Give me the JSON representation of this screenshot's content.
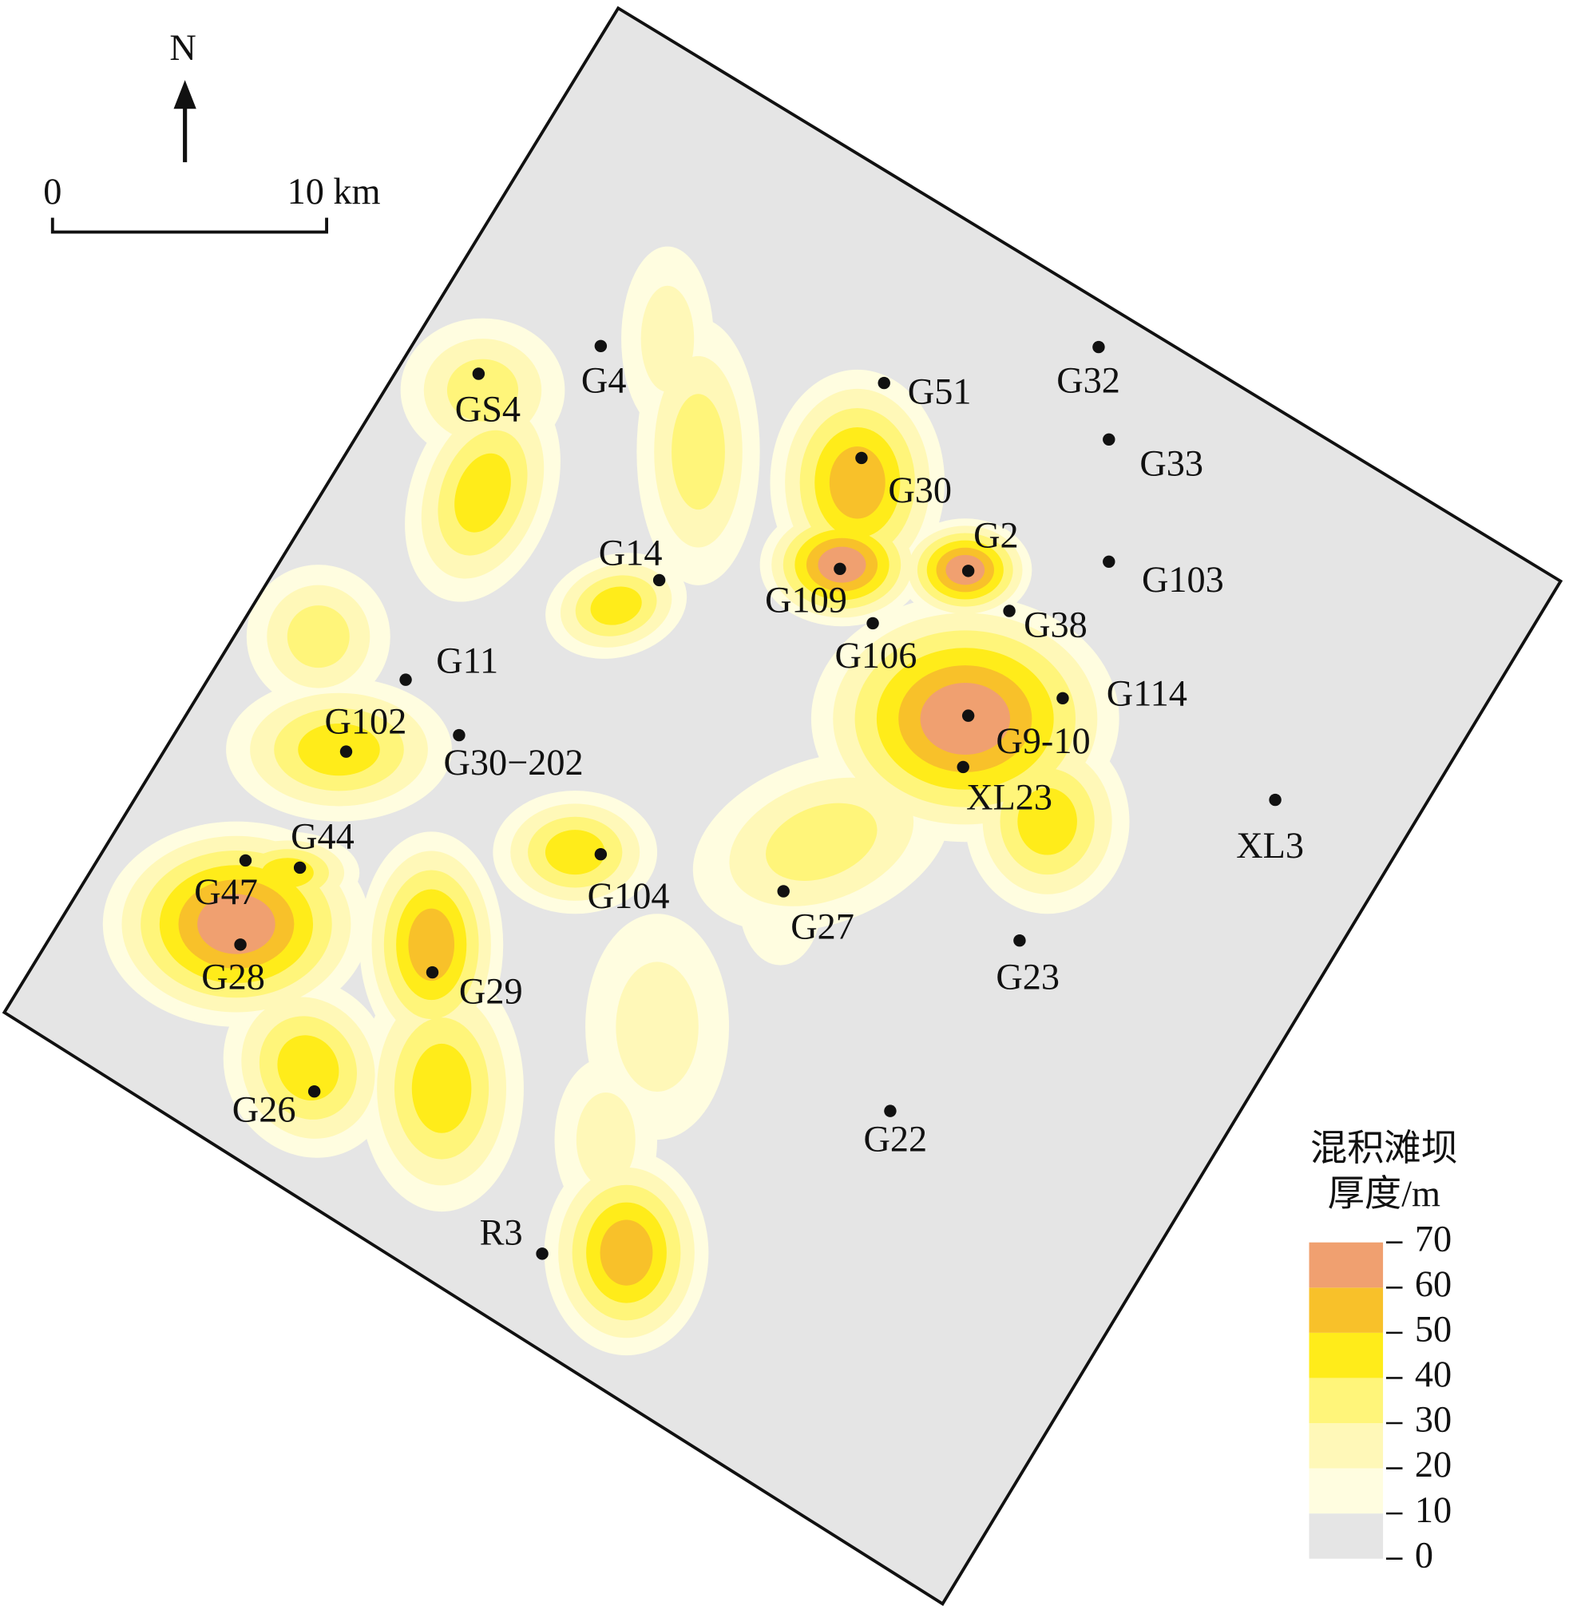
{
  "north": "N",
  "scale": {
    "start": "0",
    "end": "10 km"
  },
  "wells": [
    {
      "label": "GS4"
    },
    {
      "label": "G4"
    },
    {
      "label": "G51"
    },
    {
      "label": "G32"
    },
    {
      "label": "G33"
    },
    {
      "label": "G30"
    },
    {
      "label": "G2"
    },
    {
      "label": "G14"
    },
    {
      "label": "G109"
    },
    {
      "label": "G103"
    },
    {
      "label": "G38"
    },
    {
      "label": "G106"
    },
    {
      "label": "G11"
    },
    {
      "label": "G114"
    },
    {
      "label": "G102"
    },
    {
      "label": "G30−202"
    },
    {
      "label": "G9-10"
    },
    {
      "label": "XL23"
    },
    {
      "label": "XL3"
    },
    {
      "label": "G44"
    },
    {
      "label": "G47"
    },
    {
      "label": "G104"
    },
    {
      "label": "G27"
    },
    {
      "label": "G28"
    },
    {
      "label": "G23"
    },
    {
      "label": "G29"
    },
    {
      "label": "G26"
    },
    {
      "label": "G22"
    },
    {
      "label": "R3"
    }
  ],
  "legend": {
    "title": [
      "混积滩坝",
      "厚度/m"
    ],
    "ticks": [
      0,
      10,
      20,
      30,
      40,
      50,
      60,
      70
    ],
    "colors": [
      "#e5e5e5",
      "#fffde0",
      "#fff8b8",
      "#fff57a",
      "#ffec1a",
      "#f8c12a",
      "#f0a070"
    ]
  }
}
